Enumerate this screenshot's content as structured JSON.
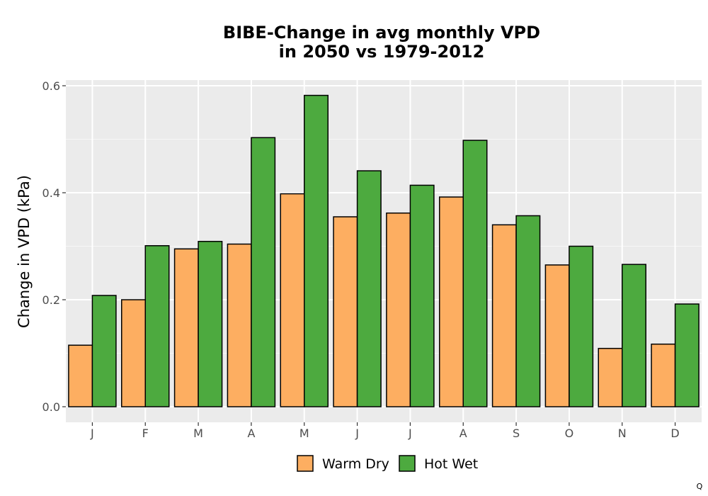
{
  "chart_data": {
    "type": "bar",
    "title_line1": "BIBE-Change in avg monthly VPD",
    "title_line2": "in 2050 vs 1979-2012",
    "xlabel": "",
    "ylabel": "Change in VPD (kPa)",
    "ylim": [
      0,
      0.62
    ],
    "y_ticks": [
      "0.0",
      "0.2",
      "0.4",
      "0.6"
    ],
    "grid": true,
    "legend_position": "bottom",
    "categories": [
      "J",
      "F",
      "M",
      "A",
      "M",
      "J",
      "J",
      "A",
      "S",
      "O",
      "N",
      "D"
    ],
    "series": [
      {
        "name": "Warm Dry",
        "color": "#fdae61",
        "values": [
          0.115,
          0.2,
          0.295,
          0.304,
          0.398,
          0.355,
          0.362,
          0.392,
          0.34,
          0.265,
          0.109,
          0.117
        ]
      },
      {
        "name": "Hot Wet",
        "color": "#4daa3f",
        "values": [
          0.208,
          0.301,
          0.309,
          0.503,
          0.582,
          0.441,
          0.414,
          0.498,
          0.357,
          0.3,
          0.266,
          0.192
        ]
      }
    ]
  },
  "corner_mark": "Q"
}
